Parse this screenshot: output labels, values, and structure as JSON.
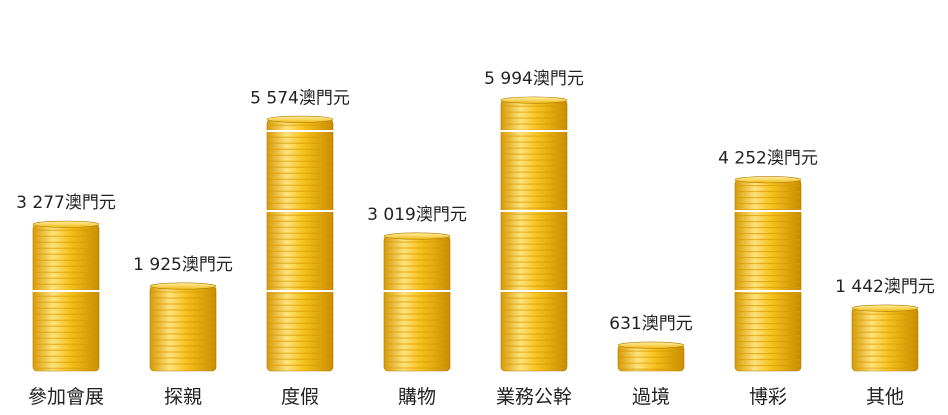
{
  "chart_data": {
    "type": "bar",
    "categories": [
      "參加會展",
      "探親",
      "度假",
      "購物",
      "業務公幹",
      "過境",
      "博彩",
      "其他"
    ],
    "values": [
      3277,
      1925,
      5574,
      3019,
      5994,
      631,
      4252,
      1442
    ],
    "value_labels": [
      "3 277澳門元",
      "1 925澳門元",
      "5 574澳門元",
      "3 019澳門元",
      "5 994澳門元",
      "631澳門元",
      "4 252澳門元",
      "1 442澳門元"
    ],
    "title": "",
    "xlabel": "",
    "ylabel": "",
    "ylim": [
      0,
      6000
    ],
    "grid": false,
    "legend": "none"
  },
  "colors": {
    "coin_light": "#ffe680",
    "coin_mid": "#f6c21c",
    "coin_dark": "#d79b07",
    "coin_edge": "#b07a00",
    "label": "#222222"
  }
}
